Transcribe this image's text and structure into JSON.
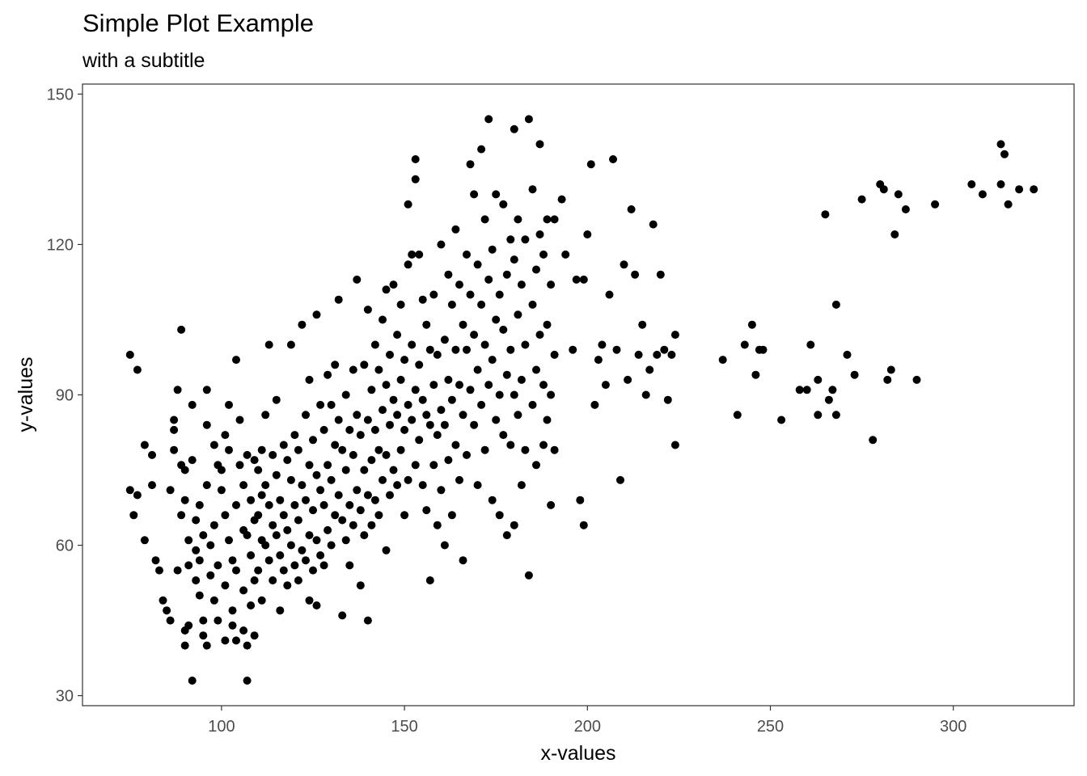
{
  "chart_data": {
    "type": "scatter",
    "title": "Simple Plot Example",
    "subtitle": "with a subtitle",
    "xlabel": "x-values",
    "ylabel": "y-values",
    "xlim": [
      62,
      333
    ],
    "ylim": [
      28,
      152
    ],
    "xticks": [
      100,
      150,
      200,
      250,
      300
    ],
    "yticks": [
      30,
      60,
      90,
      120,
      150
    ],
    "grid": false,
    "point_color": "#000000",
    "points": [
      [
        75,
        98
      ],
      [
        77,
        95
      ],
      [
        75,
        71
      ],
      [
        76,
        66
      ],
      [
        77,
        70
      ],
      [
        79,
        80
      ],
      [
        79,
        61
      ],
      [
        81,
        78
      ],
      [
        81,
        72
      ],
      [
        82,
        57
      ],
      [
        83,
        55
      ],
      [
        84,
        49
      ],
      [
        85,
        47
      ],
      [
        86,
        71
      ],
      [
        86,
        45
      ],
      [
        87,
        85
      ],
      [
        87,
        83
      ],
      [
        87,
        79
      ],
      [
        88,
        91
      ],
      [
        88,
        55
      ],
      [
        89,
        76
      ],
      [
        89,
        66
      ],
      [
        90,
        75
      ],
      [
        90,
        69
      ],
      [
        89,
        103
      ],
      [
        90,
        43
      ],
      [
        90,
        40
      ],
      [
        91,
        56
      ],
      [
        91,
        44
      ],
      [
        91,
        61
      ],
      [
        92,
        33
      ],
      [
        92,
        77
      ],
      [
        92,
        88
      ],
      [
        93,
        53
      ],
      [
        93,
        59
      ],
      [
        93,
        65
      ],
      [
        94,
        68
      ],
      [
        94,
        57
      ],
      [
        94,
        50
      ],
      [
        95,
        62
      ],
      [
        95,
        45
      ],
      [
        95,
        42
      ],
      [
        96,
        40
      ],
      [
        96,
        91
      ],
      [
        96,
        84
      ],
      [
        96,
        72
      ],
      [
        97,
        54
      ],
      [
        97,
        60
      ],
      [
        98,
        64
      ],
      [
        98,
        80
      ],
      [
        98,
        49
      ],
      [
        99,
        76
      ],
      [
        99,
        56
      ],
      [
        99,
        45
      ],
      [
        100,
        75
      ],
      [
        100,
        71
      ],
      [
        101,
        82
      ],
      [
        101,
        66
      ],
      [
        101,
        52
      ],
      [
        101,
        41
      ],
      [
        102,
        88
      ],
      [
        102,
        79
      ],
      [
        102,
        61
      ],
      [
        103,
        57
      ],
      [
        103,
        47
      ],
      [
        103,
        44
      ],
      [
        104,
        97
      ],
      [
        104,
        68
      ],
      [
        104,
        55
      ],
      [
        104,
        41
      ],
      [
        105,
        85
      ],
      [
        105,
        76
      ],
      [
        106,
        72
      ],
      [
        106,
        63
      ],
      [
        106,
        51
      ],
      [
        106,
        43
      ],
      [
        107,
        78
      ],
      [
        107,
        62
      ],
      [
        107,
        33
      ],
      [
        107,
        40
      ],
      [
        108,
        69
      ],
      [
        108,
        58
      ],
      [
        108,
        48
      ],
      [
        109,
        77
      ],
      [
        109,
        65
      ],
      [
        109,
        53
      ],
      [
        109,
        42
      ],
      [
        110,
        75
      ],
      [
        110,
        66
      ],
      [
        110,
        55
      ],
      [
        111,
        79
      ],
      [
        111,
        70
      ],
      [
        111,
        61
      ],
      [
        111,
        49
      ],
      [
        112,
        86
      ],
      [
        112,
        72
      ],
      [
        112,
        60
      ],
      [
        113,
        68
      ],
      [
        113,
        57
      ],
      [
        113,
        100
      ],
      [
        114,
        78
      ],
      [
        114,
        64
      ],
      [
        114,
        53
      ],
      [
        115,
        89
      ],
      [
        115,
        74
      ],
      [
        115,
        62
      ],
      [
        116,
        69
      ],
      [
        116,
        58
      ],
      [
        116,
        47
      ],
      [
        117,
        80
      ],
      [
        117,
        66
      ],
      [
        117,
        55
      ],
      [
        118,
        77
      ],
      [
        118,
        63
      ],
      [
        118,
        52
      ],
      [
        119,
        73
      ],
      [
        119,
        60
      ],
      [
        119,
        100
      ],
      [
        120,
        82
      ],
      [
        120,
        68
      ],
      [
        120,
        56
      ],
      [
        121,
        79
      ],
      [
        121,
        65
      ],
      [
        121,
        53
      ],
      [
        122,
        104
      ],
      [
        122,
        72
      ],
      [
        122,
        59
      ],
      [
        123,
        86
      ],
      [
        123,
        69
      ],
      [
        123,
        57
      ],
      [
        124,
        93
      ],
      [
        124,
        76
      ],
      [
        124,
        62
      ],
      [
        124,
        49
      ],
      [
        125,
        81
      ],
      [
        125,
        67
      ],
      [
        125,
        55
      ],
      [
        126,
        106
      ],
      [
        126,
        74
      ],
      [
        126,
        61
      ],
      [
        126,
        48
      ],
      [
        127,
        88
      ],
      [
        127,
        71
      ],
      [
        127,
        58
      ],
      [
        128,
        83
      ],
      [
        128,
        68
      ],
      [
        128,
        56
      ],
      [
        129,
        94
      ],
      [
        129,
        76
      ],
      [
        129,
        63
      ],
      [
        130,
        88
      ],
      [
        130,
        73
      ],
      [
        130,
        60
      ],
      [
        131,
        96
      ],
      [
        131,
        80
      ],
      [
        131,
        66
      ],
      [
        132,
        109
      ],
      [
        132,
        85
      ],
      [
        132,
        70
      ],
      [
        133,
        79
      ],
      [
        133,
        65
      ],
      [
        133,
        46
      ],
      [
        134,
        90
      ],
      [
        134,
        75
      ],
      [
        134,
        61
      ],
      [
        135,
        83
      ],
      [
        135,
        68
      ],
      [
        135,
        56
      ],
      [
        136,
        95
      ],
      [
        136,
        78
      ],
      [
        136,
        64
      ],
      [
        137,
        113
      ],
      [
        137,
        86
      ],
      [
        137,
        71
      ],
      [
        138,
        82
      ],
      [
        138,
        67
      ],
      [
        138,
        52
      ],
      [
        139,
        96
      ],
      [
        139,
        75
      ],
      [
        139,
        62
      ],
      [
        140,
        107
      ],
      [
        140,
        85
      ],
      [
        140,
        70
      ],
      [
        140,
        45
      ],
      [
        141,
        91
      ],
      [
        141,
        77
      ],
      [
        141,
        64
      ],
      [
        142,
        100
      ],
      [
        142,
        83
      ],
      [
        142,
        69
      ],
      [
        143,
        95
      ],
      [
        143,
        79
      ],
      [
        143,
        66
      ],
      [
        144,
        105
      ],
      [
        144,
        87
      ],
      [
        144,
        73
      ],
      [
        145,
        111
      ],
      [
        145,
        92
      ],
      [
        145,
        78
      ],
      [
        145,
        59
      ],
      [
        146,
        98
      ],
      [
        146,
        84
      ],
      [
        146,
        70
      ],
      [
        147,
        112
      ],
      [
        147,
        89
      ],
      [
        147,
        75
      ],
      [
        148,
        102
      ],
      [
        148,
        86
      ],
      [
        148,
        72
      ],
      [
        149,
        108
      ],
      [
        149,
        93
      ],
      [
        149,
        79
      ],
      [
        150,
        97
      ],
      [
        150,
        83
      ],
      [
        150,
        66
      ],
      [
        151,
        128
      ],
      [
        151,
        116
      ],
      [
        151,
        88
      ],
      [
        151,
        73
      ],
      [
        152,
        118
      ],
      [
        152,
        100
      ],
      [
        152,
        85
      ],
      [
        153,
        137
      ],
      [
        153,
        133
      ],
      [
        153,
        91
      ],
      [
        153,
        76
      ],
      [
        154,
        118
      ],
      [
        154,
        96
      ],
      [
        154,
        81
      ],
      [
        155,
        109
      ],
      [
        155,
        89
      ],
      [
        155,
        72
      ],
      [
        156,
        104
      ],
      [
        156,
        86
      ],
      [
        156,
        67
      ],
      [
        157,
        99
      ],
      [
        157,
        84
      ],
      [
        157,
        53
      ],
      [
        158,
        110
      ],
      [
        158,
        92
      ],
      [
        158,
        76
      ],
      [
        159,
        98
      ],
      [
        159,
        82
      ],
      [
        159,
        64
      ],
      [
        160,
        120
      ],
      [
        160,
        87
      ],
      [
        160,
        71
      ],
      [
        161,
        101
      ],
      [
        161,
        84
      ],
      [
        161,
        60
      ],
      [
        162,
        114
      ],
      [
        162,
        93
      ],
      [
        162,
        77
      ],
      [
        163,
        108
      ],
      [
        163,
        89
      ],
      [
        163,
        66
      ],
      [
        164,
        123
      ],
      [
        164,
        99
      ],
      [
        164,
        80
      ],
      [
        165,
        112
      ],
      [
        165,
        92
      ],
      [
        165,
        73
      ],
      [
        166,
        104
      ],
      [
        166,
        86
      ],
      [
        166,
        57
      ],
      [
        167,
        118
      ],
      [
        167,
        99
      ],
      [
        167,
        78
      ],
      [
        168,
        136
      ],
      [
        168,
        110
      ],
      [
        168,
        91
      ],
      [
        169,
        130
      ],
      [
        169,
        102
      ],
      [
        169,
        84
      ],
      [
        170,
        116
      ],
      [
        170,
        95
      ],
      [
        170,
        72
      ],
      [
        171,
        139
      ],
      [
        171,
        108
      ],
      [
        171,
        88
      ],
      [
        172,
        125
      ],
      [
        172,
        100
      ],
      [
        172,
        79
      ],
      [
        173,
        145
      ],
      [
        173,
        113
      ],
      [
        173,
        92
      ],
      [
        174,
        119
      ],
      [
        174,
        97
      ],
      [
        174,
        69
      ],
      [
        175,
        130
      ],
      [
        175,
        105
      ],
      [
        175,
        85
      ],
      [
        176,
        110
      ],
      [
        176,
        90
      ],
      [
        176,
        66
      ],
      [
        177,
        128
      ],
      [
        177,
        103
      ],
      [
        177,
        82
      ],
      [
        178,
        114
      ],
      [
        178,
        94
      ],
      [
        178,
        62
      ],
      [
        179,
        121
      ],
      [
        179,
        99
      ],
      [
        179,
        80
      ],
      [
        180,
        143
      ],
      [
        180,
        117
      ],
      [
        180,
        90
      ],
      [
        180,
        64
      ],
      [
        181,
        125
      ],
      [
        181,
        106
      ],
      [
        181,
        86
      ],
      [
        182,
        112
      ],
      [
        182,
        93
      ],
      [
        182,
        72
      ],
      [
        183,
        121
      ],
      [
        183,
        100
      ],
      [
        183,
        79
      ],
      [
        184,
        145
      ],
      [
        184,
        54
      ],
      [
        185,
        131
      ],
      [
        185,
        108
      ],
      [
        185,
        88
      ],
      [
        186,
        115
      ],
      [
        186,
        95
      ],
      [
        186,
        76
      ],
      [
        187,
        140
      ],
      [
        187,
        122
      ],
      [
        187,
        102
      ],
      [
        188,
        118
      ],
      [
        188,
        92
      ],
      [
        188,
        80
      ],
      [
        189,
        125
      ],
      [
        189,
        104
      ],
      [
        189,
        85
      ],
      [
        190,
        112
      ],
      [
        190,
        90
      ],
      [
        190,
        68
      ],
      [
        191,
        125
      ],
      [
        191,
        98
      ],
      [
        191,
        79
      ],
      [
        193,
        129
      ],
      [
        194,
        118
      ],
      [
        196,
        99
      ],
      [
        197,
        113
      ],
      [
        198,
        69
      ],
      [
        199,
        113
      ],
      [
        199,
        64
      ],
      [
        200,
        122
      ],
      [
        201,
        136
      ],
      [
        202,
        88
      ],
      [
        203,
        97
      ],
      [
        204,
        100
      ],
      [
        205,
        92
      ],
      [
        206,
        110
      ],
      [
        207,
        137
      ],
      [
        208,
        99
      ],
      [
        209,
        73
      ],
      [
        210,
        116
      ],
      [
        211,
        93
      ],
      [
        212,
        127
      ],
      [
        213,
        114
      ],
      [
        214,
        98
      ],
      [
        215,
        104
      ],
      [
        216,
        90
      ],
      [
        217,
        95
      ],
      [
        218,
        124
      ],
      [
        219,
        98
      ],
      [
        220,
        114
      ],
      [
        221,
        99
      ],
      [
        222,
        89
      ],
      [
        223,
        98
      ],
      [
        224,
        102
      ],
      [
        224,
        80
      ],
      [
        237,
        97
      ],
      [
        241,
        86
      ],
      [
        243,
        100
      ],
      [
        245,
        104
      ],
      [
        246,
        94
      ],
      [
        247,
        99
      ],
      [
        248,
        99
      ],
      [
        253,
        85
      ],
      [
        258,
        91
      ],
      [
        260,
        91
      ],
      [
        261,
        100
      ],
      [
        263,
        93
      ],
      [
        263,
        86
      ],
      [
        265,
        126
      ],
      [
        266,
        89
      ],
      [
        267,
        91
      ],
      [
        268,
        108
      ],
      [
        268,
        86
      ],
      [
        271,
        98
      ],
      [
        273,
        94
      ],
      [
        275,
        129
      ],
      [
        278,
        81
      ],
      [
        280,
        132
      ],
      [
        281,
        131
      ],
      [
        282,
        93
      ],
      [
        283,
        95
      ],
      [
        284,
        122
      ],
      [
        285,
        130
      ],
      [
        287,
        127
      ],
      [
        290,
        93
      ],
      [
        295,
        128
      ],
      [
        305,
        132
      ],
      [
        308,
        130
      ],
      [
        313,
        140
      ],
      [
        313,
        132
      ],
      [
        314,
        138
      ],
      [
        315,
        128
      ],
      [
        318,
        131
      ],
      [
        322,
        131
      ]
    ]
  }
}
